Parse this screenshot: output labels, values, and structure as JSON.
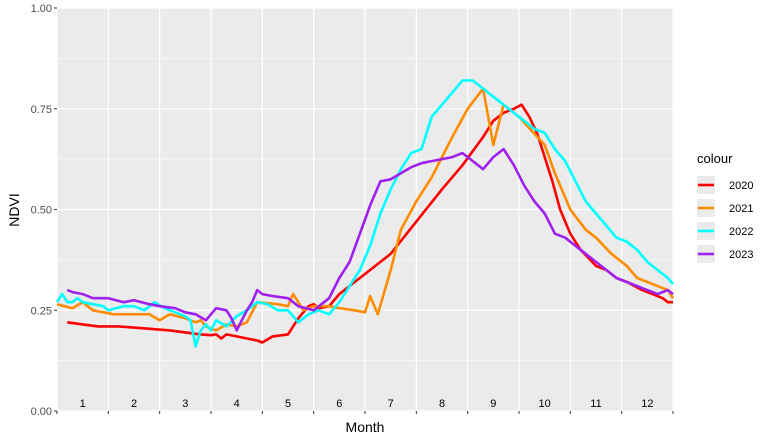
{
  "chart_data": {
    "type": "line",
    "title": "",
    "xlabel": "Month",
    "ylabel": "NDVI",
    "xlim": [
      0.5,
      12.5
    ],
    "ylim": [
      0,
      1
    ],
    "x_tick_labels": [
      "1",
      "2",
      "3",
      "4",
      "5",
      "6",
      "7",
      "8",
      "9",
      "10",
      "11",
      "12"
    ],
    "y_ticks": [
      0,
      0.25,
      0.5,
      0.75,
      1
    ],
    "y_tick_labels": [
      "0.00",
      "0.25",
      "0.50",
      "0.75",
      "1.00"
    ],
    "grid": true,
    "background": "#ebebeb",
    "legend": {
      "title": "colour",
      "position": "right"
    },
    "series": [
      {
        "name": "2020",
        "color": "#ff0000",
        "points": [
          [
            0.7,
            0.22
          ],
          [
            1.0,
            0.215
          ],
          [
            1.3,
            0.21
          ],
          [
            1.7,
            0.21
          ],
          [
            2.0,
            0.207
          ],
          [
            2.4,
            0.203
          ],
          [
            2.7,
            0.2
          ],
          [
            3.0,
            0.195
          ],
          [
            3.3,
            0.19
          ],
          [
            3.5,
            0.188
          ],
          [
            3.6,
            0.19
          ],
          [
            3.7,
            0.18
          ],
          [
            3.8,
            0.19
          ],
          [
            4.0,
            0.185
          ],
          [
            4.2,
            0.18
          ],
          [
            4.4,
            0.175
          ],
          [
            4.5,
            0.17
          ],
          [
            4.7,
            0.185
          ],
          [
            5.0,
            0.19
          ],
          [
            5.2,
            0.23
          ],
          [
            5.4,
            0.26
          ],
          [
            5.5,
            0.265
          ],
          [
            5.6,
            0.255
          ],
          [
            5.8,
            0.26
          ],
          [
            6.0,
            0.29
          ],
          [
            6.3,
            0.32
          ],
          [
            6.6,
            0.35
          ],
          [
            7.0,
            0.39
          ],
          [
            7.5,
            0.47
          ],
          [
            8.0,
            0.55
          ],
          [
            8.4,
            0.61
          ],
          [
            8.8,
            0.68
          ],
          [
            9.0,
            0.72
          ],
          [
            9.2,
            0.74
          ],
          [
            9.4,
            0.75
          ],
          [
            9.55,
            0.76
          ],
          [
            9.7,
            0.73
          ],
          [
            9.85,
            0.69
          ],
          [
            10.0,
            0.63
          ],
          [
            10.15,
            0.57
          ],
          [
            10.3,
            0.5
          ],
          [
            10.5,
            0.44
          ],
          [
            10.7,
            0.4
          ],
          [
            11.0,
            0.36
          ],
          [
            11.2,
            0.35
          ],
          [
            11.4,
            0.33
          ],
          [
            11.6,
            0.32
          ],
          [
            11.9,
            0.3
          ],
          [
            12.1,
            0.29
          ],
          [
            12.3,
            0.28
          ],
          [
            12.4,
            0.27
          ],
          [
            12.5,
            0.27
          ]
        ]
      },
      {
        "name": "2021",
        "color": "#ff8c00",
        "points": [
          [
            0.5,
            0.265
          ],
          [
            0.8,
            0.255
          ],
          [
            1.0,
            0.27
          ],
          [
            1.2,
            0.25
          ],
          [
            1.4,
            0.245
          ],
          [
            1.6,
            0.24
          ],
          [
            2.0,
            0.24
          ],
          [
            2.3,
            0.24
          ],
          [
            2.5,
            0.225
          ],
          [
            2.7,
            0.24
          ],
          [
            3.0,
            0.23
          ],
          [
            3.2,
            0.22
          ],
          [
            3.3,
            0.225
          ],
          [
            3.4,
            0.21
          ],
          [
            3.6,
            0.2
          ],
          [
            3.8,
            0.215
          ],
          [
            4.0,
            0.21
          ],
          [
            4.2,
            0.22
          ],
          [
            4.4,
            0.27
          ],
          [
            4.8,
            0.265
          ],
          [
            5.0,
            0.26
          ],
          [
            5.1,
            0.29
          ],
          [
            5.3,
            0.25
          ],
          [
            5.5,
            0.26
          ],
          [
            5.8,
            0.26
          ],
          [
            6.0,
            0.255
          ],
          [
            6.3,
            0.25
          ],
          [
            6.5,
            0.245
          ],
          [
            6.6,
            0.285
          ],
          [
            6.75,
            0.24
          ],
          [
            7.0,
            0.35
          ],
          [
            7.2,
            0.45
          ],
          [
            7.5,
            0.52
          ],
          [
            7.8,
            0.58
          ],
          [
            8.0,
            0.63
          ],
          [
            8.2,
            0.68
          ],
          [
            8.5,
            0.75
          ],
          [
            8.8,
            0.8
          ],
          [
            9.0,
            0.66
          ],
          [
            9.2,
            0.76
          ],
          [
            9.5,
            0.73
          ],
          [
            10.0,
            0.66
          ],
          [
            10.2,
            0.59
          ],
          [
            10.5,
            0.5
          ],
          [
            10.8,
            0.45
          ],
          [
            11.0,
            0.43
          ],
          [
            11.3,
            0.39
          ],
          [
            11.6,
            0.36
          ],
          [
            11.8,
            0.33
          ],
          [
            12.0,
            0.32
          ],
          [
            12.2,
            0.31
          ],
          [
            12.4,
            0.3
          ],
          [
            12.5,
            0.28
          ]
        ]
      },
      {
        "name": "2022",
        "color": "#00ffff",
        "points": [
          [
            0.5,
            0.27
          ],
          [
            0.6,
            0.29
          ],
          [
            0.7,
            0.27
          ],
          [
            0.8,
            0.27
          ],
          [
            0.9,
            0.28
          ],
          [
            1.0,
            0.27
          ],
          [
            1.2,
            0.265
          ],
          [
            1.4,
            0.26
          ],
          [
            1.5,
            0.25
          ],
          [
            1.8,
            0.26
          ],
          [
            2.0,
            0.26
          ],
          [
            2.2,
            0.25
          ],
          [
            2.4,
            0.27
          ],
          [
            2.6,
            0.255
          ],
          [
            2.8,
            0.245
          ],
          [
            3.0,
            0.235
          ],
          [
            3.1,
            0.225
          ],
          [
            3.2,
            0.16
          ],
          [
            3.3,
            0.2
          ],
          [
            3.4,
            0.215
          ],
          [
            3.5,
            0.2
          ],
          [
            3.6,
            0.225
          ],
          [
            3.8,
            0.21
          ],
          [
            4.0,
            0.235
          ],
          [
            4.2,
            0.25
          ],
          [
            4.4,
            0.27
          ],
          [
            4.6,
            0.265
          ],
          [
            4.8,
            0.25
          ],
          [
            5.0,
            0.25
          ],
          [
            5.2,
            0.22
          ],
          [
            5.4,
            0.24
          ],
          [
            5.6,
            0.25
          ],
          [
            5.8,
            0.24
          ],
          [
            6.0,
            0.27
          ],
          [
            6.2,
            0.31
          ],
          [
            6.4,
            0.35
          ],
          [
            6.6,
            0.41
          ],
          [
            6.8,
            0.49
          ],
          [
            7.0,
            0.55
          ],
          [
            7.2,
            0.6
          ],
          [
            7.4,
            0.64
          ],
          [
            7.6,
            0.65
          ],
          [
            7.8,
            0.73
          ],
          [
            8.0,
            0.76
          ],
          [
            8.2,
            0.79
          ],
          [
            8.4,
            0.82
          ],
          [
            8.6,
            0.82
          ],
          [
            8.8,
            0.8
          ],
          [
            9.0,
            0.78
          ],
          [
            9.2,
            0.76
          ],
          [
            9.4,
            0.74
          ],
          [
            9.6,
            0.72
          ],
          [
            9.8,
            0.7
          ],
          [
            10.0,
            0.69
          ],
          [
            10.2,
            0.65
          ],
          [
            10.4,
            0.62
          ],
          [
            10.6,
            0.57
          ],
          [
            10.8,
            0.52
          ],
          [
            11.0,
            0.49
          ],
          [
            11.2,
            0.46
          ],
          [
            11.4,
            0.43
          ],
          [
            11.6,
            0.42
          ],
          [
            11.8,
            0.4
          ],
          [
            12.0,
            0.37
          ],
          [
            12.2,
            0.35
          ],
          [
            12.4,
            0.33
          ],
          [
            12.5,
            0.315
          ]
        ]
      },
      {
        "name": "2023",
        "color": "#a020f0",
        "points": [
          [
            0.7,
            0.3
          ],
          [
            0.8,
            0.295
          ],
          [
            1.0,
            0.29
          ],
          [
            1.2,
            0.28
          ],
          [
            1.5,
            0.28
          ],
          [
            1.8,
            0.27
          ],
          [
            2.0,
            0.275
          ],
          [
            2.3,
            0.265
          ],
          [
            2.5,
            0.26
          ],
          [
            2.8,
            0.255
          ],
          [
            3.0,
            0.245
          ],
          [
            3.2,
            0.24
          ],
          [
            3.4,
            0.225
          ],
          [
            3.6,
            0.255
          ],
          [
            3.8,
            0.25
          ],
          [
            3.9,
            0.23
          ],
          [
            4.0,
            0.2
          ],
          [
            4.2,
            0.25
          ],
          [
            4.3,
            0.27
          ],
          [
            4.4,
            0.3
          ],
          [
            4.5,
            0.29
          ],
          [
            4.7,
            0.285
          ],
          [
            5.0,
            0.28
          ],
          [
            5.2,
            0.26
          ],
          [
            5.5,
            0.25
          ],
          [
            5.8,
            0.28
          ],
          [
            6.0,
            0.33
          ],
          [
            6.2,
            0.37
          ],
          [
            6.4,
            0.44
          ],
          [
            6.6,
            0.51
          ],
          [
            6.8,
            0.57
          ],
          [
            7.0,
            0.575
          ],
          [
            7.2,
            0.59
          ],
          [
            7.4,
            0.605
          ],
          [
            7.6,
            0.615
          ],
          [
            7.8,
            0.62
          ],
          [
            8.0,
            0.625
          ],
          [
            8.2,
            0.63
          ],
          [
            8.4,
            0.64
          ],
          [
            8.6,
            0.62
          ],
          [
            8.8,
            0.6
          ],
          [
            9.0,
            0.63
          ],
          [
            9.2,
            0.65
          ],
          [
            9.4,
            0.61
          ],
          [
            9.6,
            0.56
          ],
          [
            9.8,
            0.52
          ],
          [
            10.0,
            0.49
          ],
          [
            10.2,
            0.44
          ],
          [
            10.4,
            0.43
          ],
          [
            10.6,
            0.41
          ],
          [
            10.8,
            0.39
          ],
          [
            11.0,
            0.37
          ],
          [
            11.2,
            0.35
          ],
          [
            11.4,
            0.33
          ],
          [
            11.6,
            0.32
          ],
          [
            11.8,
            0.31
          ],
          [
            12.0,
            0.3
          ],
          [
            12.2,
            0.29
          ],
          [
            12.4,
            0.3
          ],
          [
            12.5,
            0.29
          ]
        ]
      }
    ]
  }
}
